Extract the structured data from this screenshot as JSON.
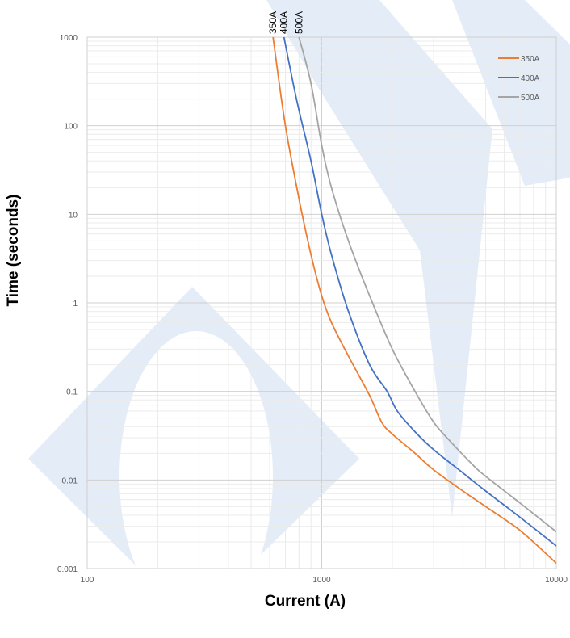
{
  "chart_data": {
    "type": "line",
    "title": "",
    "xlabel": "Current (A)",
    "ylabel": "Time (seconds)",
    "x_scale": "log",
    "y_scale": "log",
    "xlim": [
      100,
      10000
    ],
    "ylim": [
      0.001,
      1000
    ],
    "x_ticks": [
      "100",
      "1000",
      "10000"
    ],
    "y_ticks": [
      "1000",
      "100",
      "10",
      "1",
      "0.1",
      "0.01",
      "0.001"
    ],
    "grid": true,
    "legend_position": "top-right",
    "curve_labels": [
      "350A",
      "400A",
      "500A"
    ],
    "series": [
      {
        "name": "350A",
        "color": "#ED7D31",
        "points": [
          [
            620,
            1000
          ],
          [
            700,
            100
          ],
          [
            800,
            15
          ],
          [
            900,
            3.5
          ],
          [
            1000,
            1.2
          ],
          [
            1100,
            0.6
          ],
          [
            1300,
            0.25
          ],
          [
            1600,
            0.09
          ],
          [
            1800,
            0.045
          ],
          [
            2000,
            0.033
          ],
          [
            2500,
            0.02
          ],
          [
            3000,
            0.013
          ],
          [
            4000,
            0.0075
          ],
          [
            5000,
            0.005
          ],
          [
            7000,
            0.0027
          ],
          [
            10000,
            0.00115
          ]
        ]
      },
      {
        "name": "400A",
        "color": "#4472C4",
        "points": [
          [
            690,
            1000
          ],
          [
            780,
            200
          ],
          [
            900,
            40
          ],
          [
            1000,
            10
          ],
          [
            1100,
            3.5
          ],
          [
            1300,
            0.8
          ],
          [
            1600,
            0.2
          ],
          [
            1900,
            0.1
          ],
          [
            2100,
            0.06
          ],
          [
            2500,
            0.035
          ],
          [
            3000,
            0.022
          ],
          [
            4000,
            0.012
          ],
          [
            5000,
            0.0075
          ],
          [
            7000,
            0.0038
          ],
          [
            10000,
            0.0018
          ]
        ]
      },
      {
        "name": "500A",
        "color": "#A5A5A5",
        "points": [
          [
            800,
            1000
          ],
          [
            900,
            300
          ],
          [
            1000,
            60
          ],
          [
            1100,
            20
          ],
          [
            1300,
            5
          ],
          [
            1600,
            1.2
          ],
          [
            2000,
            0.3
          ],
          [
            2500,
            0.1
          ],
          [
            3000,
            0.045
          ],
          [
            3500,
            0.028
          ],
          [
            4500,
            0.014
          ],
          [
            5000,
            0.011
          ],
          [
            7000,
            0.0055
          ],
          [
            10000,
            0.0026
          ]
        ]
      }
    ]
  }
}
